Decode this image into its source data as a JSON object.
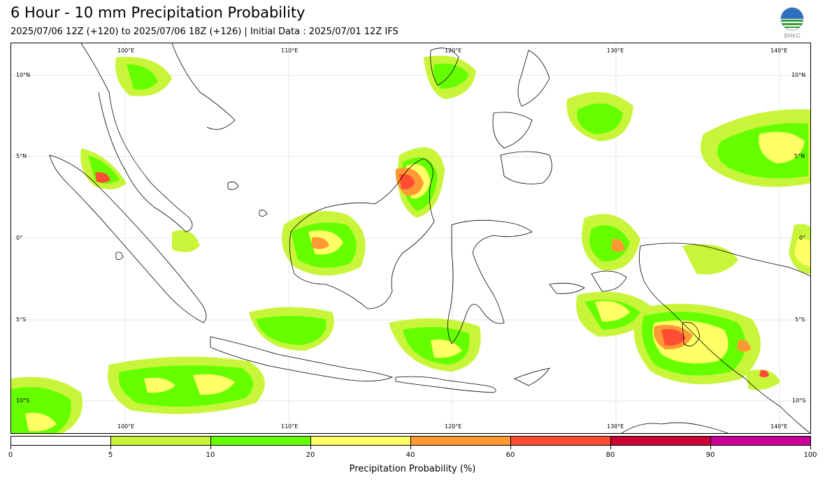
{
  "header": {
    "title": "6 Hour - 10 mm Precipitation Probability",
    "subtitle": "2025/07/06 12Z (+120) to 2025/07/06 18Z (+126) | Initial Data : 2025/07/01 12Z IFS",
    "logo_text": "BMKG"
  },
  "map": {
    "lon_labels_top": [
      "100°E",
      "110°E",
      "120°E",
      "130°E",
      "140°E"
    ],
    "lon_labels_bottom": [
      "100°E",
      "110°E",
      "120°E",
      "130°E",
      "140°E"
    ],
    "lat_labels_left": [
      "10°N",
      "5°N",
      "0°",
      "5°S",
      "10°S"
    ],
    "lat_labels_right": [
      "10°N",
      "5°N",
      "0°",
      "5°S",
      "10°S"
    ],
    "precip_colors": [
      "#c8f53a",
      "#66ff00",
      "#ffff66",
      "#ff9933",
      "#ff4d33",
      "#cc0033",
      "#cc0099"
    ]
  },
  "colorbar": {
    "title": "Precipitation Probability (%)",
    "ticks": [
      "0",
      "5",
      "10",
      "20",
      "40",
      "60",
      "80",
      "90",
      "100"
    ],
    "colors": [
      "#ffffff",
      "#c8f53a",
      "#66ff00",
      "#ffff66",
      "#ff9933",
      "#ff4d33",
      "#cc0033",
      "#cc0099"
    ]
  }
}
